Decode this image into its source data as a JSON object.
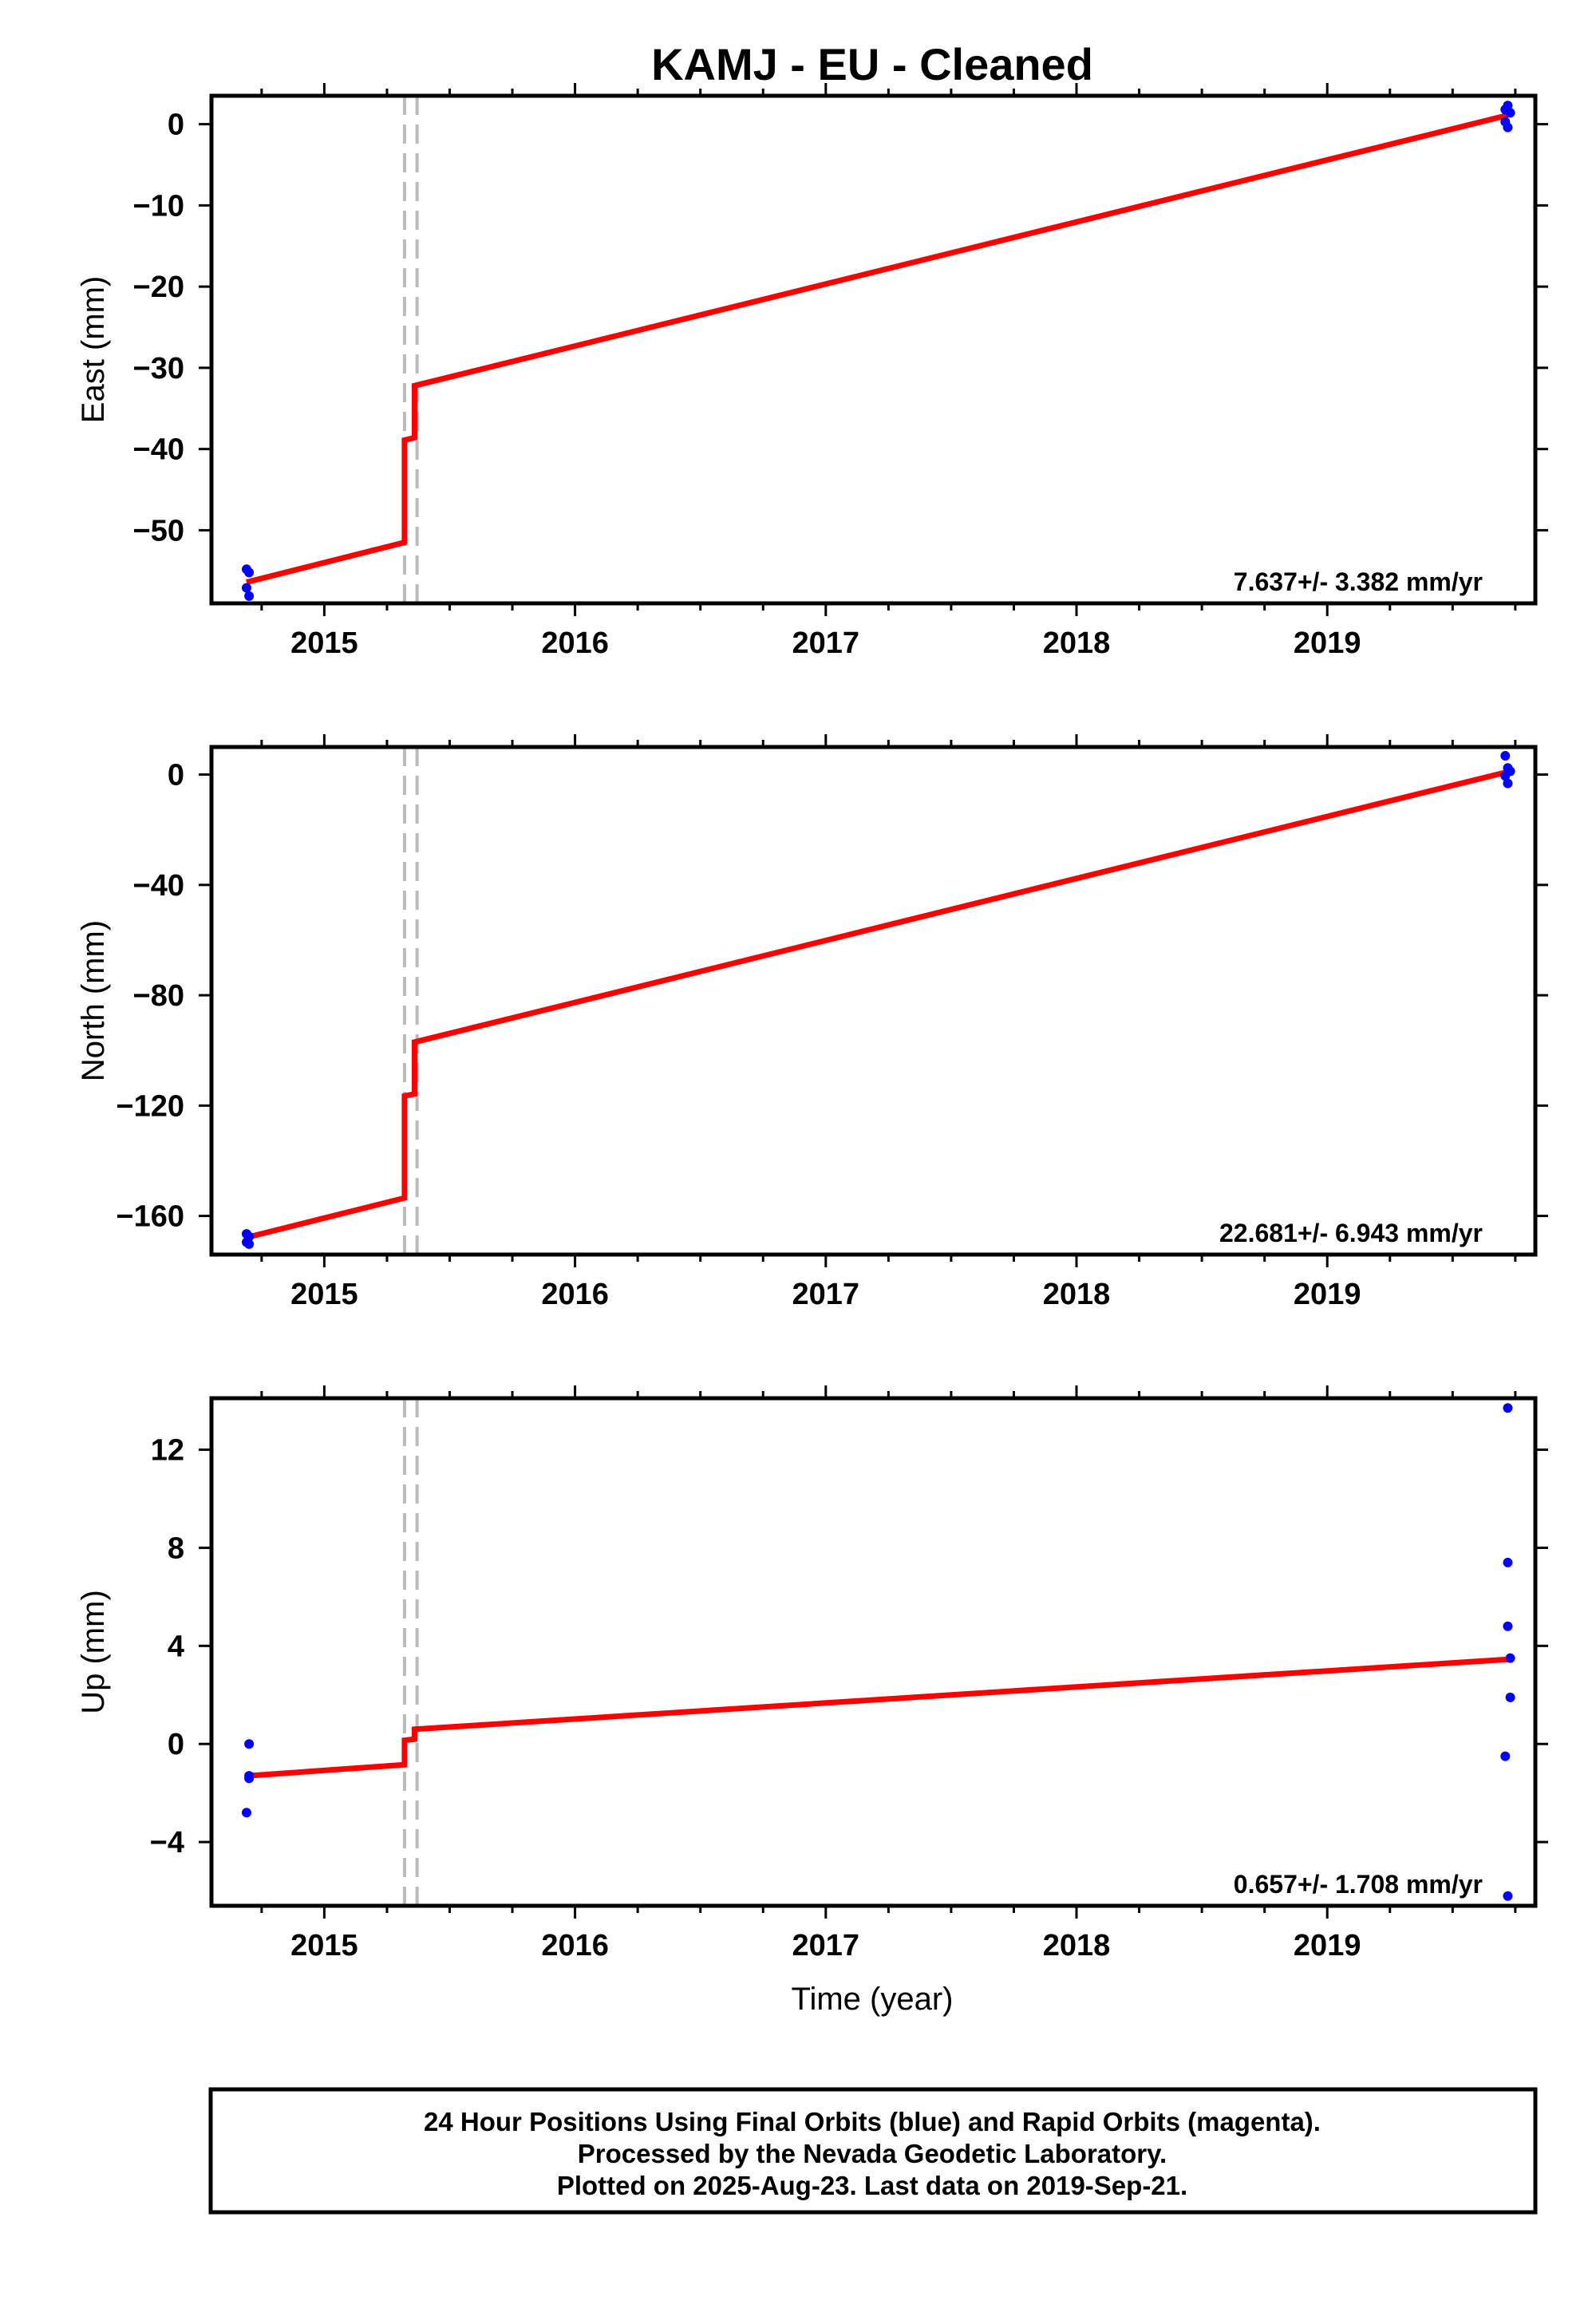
{
  "title": "KAMJ  - EU - Cleaned",
  "x_axis_label": "Time (year)",
  "footer": {
    "line1": "24 Hour Positions Using Final Orbits (blue) and Rapid Orbits (magenta).",
    "line2": "Processed by the Nevada Geodetic Laboratory.",
    "line3": "Plotted on 2025-Aug-23. Last data on 2019-Sep-21."
  },
  "colors": {
    "data": "#0000ff",
    "model": "#ff0000",
    "offset_line": "#bbbbbb",
    "frame": "#000000"
  },
  "chart_data": [
    {
      "type": "scatter",
      "title": "KAMJ  - EU - Cleaned",
      "ylabel": "East (mm)",
      "xlabel": "",
      "xlim": [
        2014.55,
        2019.83
      ],
      "ylim": [
        -59,
        3.5
      ],
      "xticks": [
        2015,
        2016,
        2017,
        2018,
        2019
      ],
      "yticks": [
        0,
        -10,
        -20,
        -30,
        -40,
        -50
      ],
      "rate_label": "7.637+/- 3.382 mm/yr",
      "offsets": [
        2015.32,
        2015.37
      ],
      "series": [
        {
          "name": "",
          "type": "scatter",
          "points": [
            [
              2014.69,
              -54.8
            ],
            [
              2014.7,
              -55.2
            ],
            [
              2014.69,
              -57.1
            ],
            [
              2014.7,
              -58.1
            ],
            [
              2019.71,
              1.8
            ],
            [
              2019.72,
              2.3
            ],
            [
              2019.71,
              0.3
            ],
            [
              2019.72,
              -0.4
            ],
            [
              2019.73,
              1.4
            ]
          ]
        },
        {
          "name": "",
          "type": "line",
          "points": [
            [
              2014.69,
              -56.4
            ],
            [
              2015.32,
              -51.5
            ],
            [
              2015.32,
              -38.9
            ],
            [
              2015.36,
              -38.6
            ],
            [
              2015.36,
              -32.2
            ],
            [
              2019.72,
              1.1
            ]
          ]
        }
      ]
    },
    {
      "type": "scatter",
      "title": "",
      "ylabel": "North (mm)",
      "xlabel": "",
      "xlim": [
        2014.55,
        2019.83
      ],
      "ylim": [
        -174,
        10
      ],
      "xticks": [
        2015,
        2016,
        2017,
        2018,
        2019
      ],
      "yticks": [
        0,
        -40,
        -80,
        -120,
        -160
      ],
      "rate_label": "22.681+/- 6.943 mm/yr",
      "offsets": [
        2015.32,
        2015.37
      ],
      "series": [
        {
          "name": "",
          "type": "scatter",
          "points": [
            [
              2014.69,
              -166.5
            ],
            [
              2014.7,
              -167.5
            ],
            [
              2014.69,
              -169.5
            ],
            [
              2014.7,
              -170.2
            ],
            [
              2019.71,
              6.8
            ],
            [
              2019.72,
              2.4
            ],
            [
              2019.71,
              -0.5
            ],
            [
              2019.72,
              -3.2
            ],
            [
              2019.73,
              1.2
            ]
          ]
        },
        {
          "name": "",
          "type": "line",
          "points": [
            [
              2014.69,
              -167.8
            ],
            [
              2015.32,
              -153.5
            ],
            [
              2015.32,
              -116.5
            ],
            [
              2015.36,
              -115.8
            ],
            [
              2015.36,
              -97
            ],
            [
              2019.72,
              1
            ]
          ]
        }
      ]
    },
    {
      "type": "scatter",
      "title": "",
      "ylabel": "Up (mm)",
      "xlabel": "Time (year)",
      "xlim": [
        2014.55,
        2019.83
      ],
      "ylim": [
        -6.6,
        14.1
      ],
      "xticks": [
        2015,
        2016,
        2017,
        2018,
        2019
      ],
      "yticks": [
        12,
        8,
        4,
        0,
        -4
      ],
      "rate_label": "0.657+/- 1.708 mm/yr",
      "offsets": [
        2015.32,
        2015.37
      ],
      "series": [
        {
          "name": "",
          "type": "scatter",
          "points": [
            [
              2014.7,
              0.0
            ],
            [
              2014.7,
              -1.3
            ],
            [
              2014.7,
              -1.4
            ],
            [
              2014.69,
              -2.8
            ],
            [
              2019.72,
              13.7
            ],
            [
              2019.72,
              7.4
            ],
            [
              2019.72,
              4.8
            ],
            [
              2019.73,
              3.5
            ],
            [
              2019.73,
              1.9
            ],
            [
              2019.71,
              -0.5
            ],
            [
              2019.72,
              -6.2
            ]
          ]
        },
        {
          "name": "",
          "type": "line",
          "points": [
            [
              2014.69,
              -1.3
            ],
            [
              2015.32,
              -0.85
            ],
            [
              2015.32,
              0.15
            ],
            [
              2015.36,
              0.2
            ],
            [
              2015.36,
              0.6
            ],
            [
              2019.72,
              3.45
            ]
          ]
        }
      ]
    }
  ]
}
